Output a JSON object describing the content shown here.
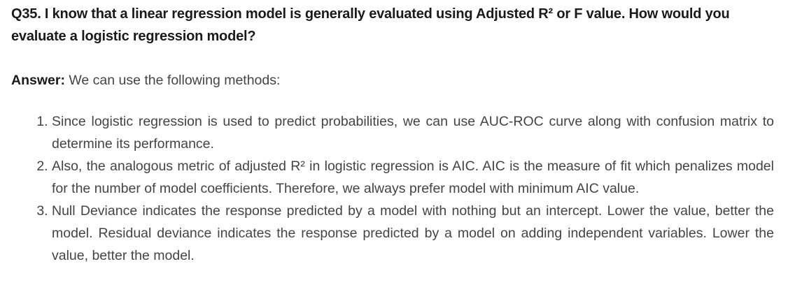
{
  "question": {
    "text": "Q35. I know that a linear regression model is generally evaluated using Adjusted R² or F value. How would you evaluate a logistic regression model?"
  },
  "answer": {
    "label": "Answer:",
    "text": " We can use the following methods:"
  },
  "methods": [
    {
      "text": "Since logistic regression is used to predict probabilities, we can use AUC-ROC curve along with confusion matrix to determine its performance."
    },
    {
      "text": "Also, the analogous metric of adjusted R² in logistic regression is AIC. AIC is the measure of fit which penalizes model for the number of model coefficients. Therefore, we always prefer model with minimum AIC value."
    },
    {
      "text": "Null Deviance indicates the response predicted by a model with nothing but an intercept. Lower the value, better the model. Residual deviance indicates the response predicted by a model on adding independent variables. Lower the value, better the model."
    }
  ]
}
